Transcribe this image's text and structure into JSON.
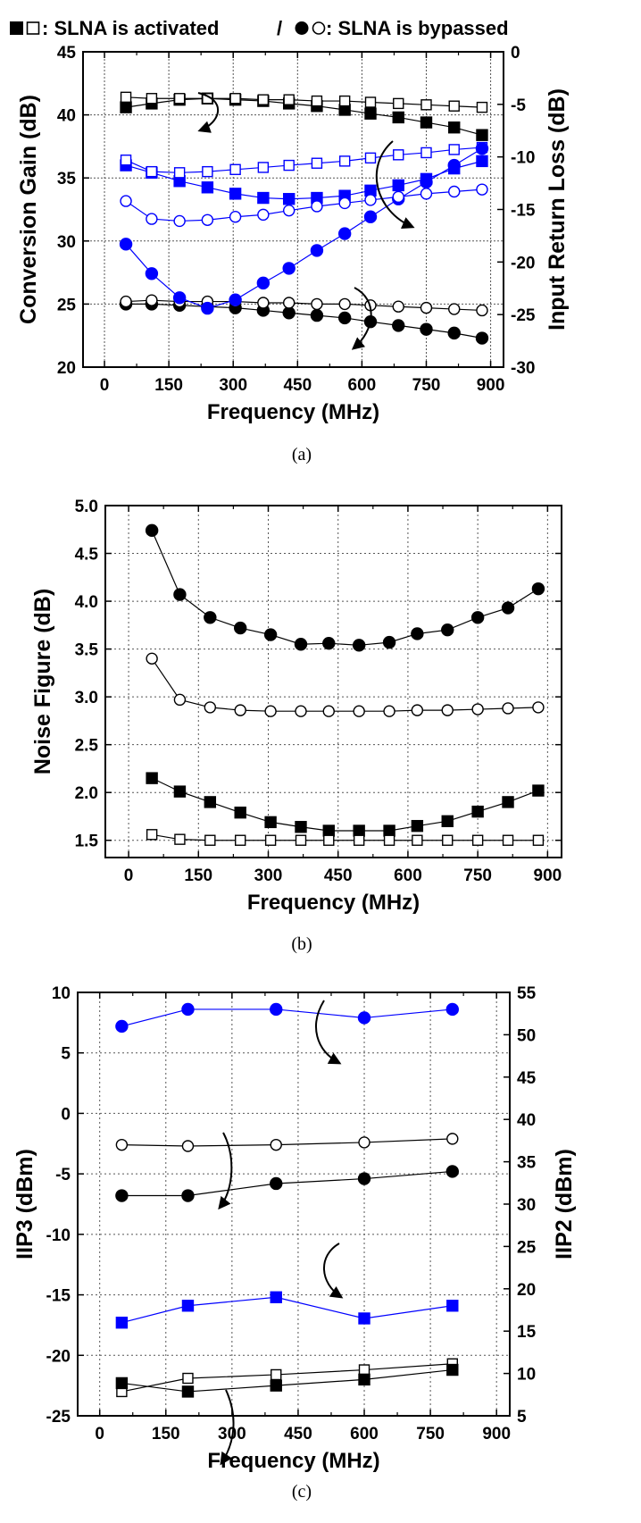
{
  "legend": {
    "activated_text": ": SLNA is activated",
    "separator": "/",
    "bypassed_text": ": SLNA is bypassed"
  },
  "colors": {
    "black": "#000000",
    "blue": "#0000ff",
    "grid": "#555555"
  },
  "chart_data": [
    {
      "type": "line",
      "caption": "(a)",
      "xlabel": "Frequency (MHz)",
      "ylabel": "Conversion Gain (dB)",
      "y2label": "Input Return Loss (dB)",
      "xlim": [
        -50,
        930
      ],
      "xticks": [
        0,
        150,
        300,
        450,
        600,
        750,
        900
      ],
      "ylim": [
        20,
        45
      ],
      "yticks": [
        20,
        25,
        30,
        35,
        40,
        45
      ],
      "y2lim": [
        -30,
        0
      ],
      "y2ticks": [
        -30,
        -25,
        -20,
        -15,
        -10,
        -5,
        0
      ],
      "grid": true,
      "x": [
        50,
        110,
        175,
        240,
        305,
        370,
        430,
        495,
        560,
        620,
        685,
        750,
        815,
        880
      ],
      "series": [
        {
          "axis": "left",
          "marker": "square",
          "filled": true,
          "color": "black",
          "values": [
            40.6,
            40.9,
            41.2,
            41.3,
            41.2,
            41.1,
            40.9,
            40.7,
            40.4,
            40.1,
            39.8,
            39.4,
            39.0,
            38.4
          ]
        },
        {
          "axis": "left",
          "marker": "square",
          "filled": false,
          "color": "black",
          "values": [
            41.4,
            41.3,
            41.3,
            41.3,
            41.3,
            41.2,
            41.2,
            41.1,
            41.1,
            41.0,
            40.9,
            40.8,
            40.7,
            40.6
          ]
        },
        {
          "axis": "left",
          "marker": "circle",
          "filled": true,
          "color": "black",
          "values": [
            25.0,
            25.0,
            24.9,
            24.8,
            24.7,
            24.5,
            24.3,
            24.1,
            23.9,
            23.6,
            23.3,
            23.0,
            22.7,
            22.3
          ]
        },
        {
          "axis": "left",
          "marker": "circle",
          "filled": false,
          "color": "black",
          "values": [
            25.2,
            25.3,
            25.2,
            25.2,
            25.2,
            25.1,
            25.1,
            25.0,
            25.0,
            24.9,
            24.8,
            24.7,
            24.6,
            24.5
          ]
        },
        {
          "axis": "right",
          "marker": "square",
          "filled": true,
          "color": "blue",
          "values": [
            -10.8,
            -11.5,
            -12.3,
            -12.9,
            -13.5,
            -13.9,
            -14.0,
            -13.9,
            -13.7,
            -13.2,
            -12.7,
            -12.1,
            -11.1,
            -10.4
          ]
        },
        {
          "axis": "right",
          "marker": "square",
          "filled": false,
          "color": "blue",
          "values": [
            -10.3,
            -11.4,
            -11.5,
            -11.4,
            -11.2,
            -11.0,
            -10.8,
            -10.6,
            -10.4,
            -10.1,
            -9.8,
            -9.6,
            -9.3,
            -9.1
          ]
        },
        {
          "axis": "right",
          "marker": "circle",
          "filled": true,
          "color": "blue",
          "values": [
            -18.3,
            -21.1,
            -23.4,
            -24.4,
            -23.6,
            -22.0,
            -20.6,
            -18.9,
            -17.3,
            -15.7,
            -14.0,
            -12.4,
            -10.8,
            -9.2
          ]
        },
        {
          "axis": "right",
          "marker": "circle",
          "filled": false,
          "color": "blue",
          "values": [
            -14.2,
            -15.9,
            -16.1,
            -16.0,
            -15.7,
            -15.5,
            -15.1,
            -14.7,
            -14.4,
            -14.1,
            -13.8,
            -13.5,
            -13.3,
            -13.1
          ]
        }
      ]
    },
    {
      "type": "line",
      "caption": "(b)",
      "xlabel": "Frequency (MHz)",
      "ylabel": "Noise Figure (dB)",
      "xlim": [
        -50,
        930
      ],
      "xticks": [
        0,
        150,
        300,
        450,
        600,
        750,
        900
      ],
      "ylim": [
        1.32,
        5.0
      ],
      "yticks": [
        1.5,
        2.0,
        2.5,
        3.0,
        3.5,
        4.0,
        4.5,
        5.0
      ],
      "grid": true,
      "x": [
        50,
        110,
        175,
        240,
        305,
        370,
        430,
        495,
        560,
        620,
        685,
        750,
        815,
        880
      ],
      "series": [
        {
          "axis": "left",
          "marker": "circle",
          "filled": true,
          "color": "black",
          "values": [
            4.74,
            4.07,
            3.83,
            3.72,
            3.65,
            3.55,
            3.56,
            3.54,
            3.57,
            3.66,
            3.7,
            3.83,
            3.93,
            4.13
          ]
        },
        {
          "axis": "left",
          "marker": "circle",
          "filled": false,
          "color": "black",
          "values": [
            3.4,
            2.97,
            2.89,
            2.86,
            2.85,
            2.85,
            2.85,
            2.85,
            2.85,
            2.86,
            2.86,
            2.87,
            2.88,
            2.89
          ]
        },
        {
          "axis": "left",
          "marker": "square",
          "filled": true,
          "color": "black",
          "values": [
            2.15,
            2.01,
            1.9,
            1.79,
            1.69,
            1.64,
            1.6,
            1.6,
            1.6,
            1.65,
            1.7,
            1.8,
            1.9,
            2.02
          ]
        },
        {
          "axis": "left",
          "marker": "square",
          "filled": false,
          "color": "black",
          "values": [
            1.56,
            1.51,
            1.5,
            1.5,
            1.5,
            1.5,
            1.5,
            1.5,
            1.5,
            1.5,
            1.5,
            1.5,
            1.5,
            1.5
          ]
        }
      ]
    },
    {
      "type": "line",
      "caption": "(c)",
      "xlabel": "Frequency (MHz)",
      "ylabel": "IIP3 (dBm)",
      "y2label": "IIP2 (dBm)",
      "xlim": [
        -50,
        930
      ],
      "xticks": [
        0,
        150,
        300,
        450,
        600,
        750,
        900
      ],
      "ylim": [
        -25,
        10
      ],
      "yticks": [
        -25,
        -20,
        -15,
        -10,
        -5,
        0,
        5,
        10
      ],
      "y2lim": [
        5,
        55
      ],
      "y2ticks": [
        5,
        10,
        15,
        20,
        25,
        30,
        35,
        40,
        45,
        50,
        55
      ],
      "grid": true,
      "x": [
        50,
        200,
        400,
        600,
        800
      ],
      "series": [
        {
          "axis": "right",
          "marker": "circle",
          "filled": true,
          "color": "blue",
          "values": [
            51.0,
            53.0,
            53.0,
            52.0,
            53.0
          ]
        },
        {
          "axis": "left",
          "marker": "circle",
          "filled": false,
          "color": "black",
          "values": [
            -2.6,
            -2.7,
            -2.6,
            -2.4,
            -2.1
          ]
        },
        {
          "axis": "left",
          "marker": "circle",
          "filled": true,
          "color": "black",
          "values": [
            -6.8,
            -6.8,
            -5.8,
            -5.4,
            -4.8
          ]
        },
        {
          "axis": "right",
          "marker": "square",
          "filled": true,
          "color": "blue",
          "values": [
            16.0,
            18.0,
            19.0,
            16.5,
            18.0
          ]
        },
        {
          "axis": "left",
          "marker": "square",
          "filled": false,
          "color": "black",
          "values": [
            -23.0,
            -21.9,
            -21.6,
            -21.2,
            -20.7
          ]
        },
        {
          "axis": "left",
          "marker": "square",
          "filled": true,
          "color": "black",
          "values": [
            -22.3,
            -23.0,
            -22.5,
            -22.0,
            -21.2
          ]
        }
      ]
    }
  ]
}
